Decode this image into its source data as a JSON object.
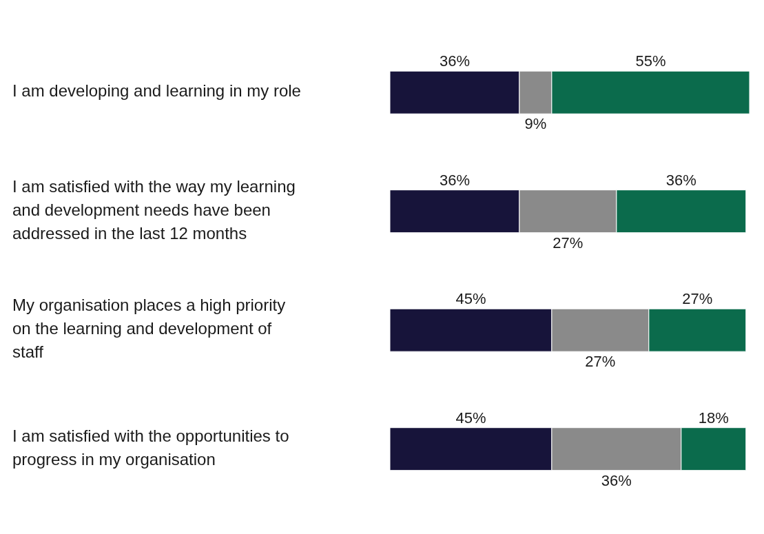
{
  "chart_data": {
    "type": "bar",
    "orientation": "horizontal",
    "stacked": true,
    "tick_labels": "y",
    "categories": [
      "I am developing and learning in my role",
      "I am satisfied with the way my learning and development needs have been addressed in the last 12 months",
      "My organisation places a high priority on the learning and development of staff",
      "I am satisfied with the opportunities to progress in my organisation"
    ],
    "series": [
      {
        "color": "#17143a",
        "values": [
          36,
          36,
          45,
          45
        ],
        "value_labels": [
          "36%",
          "36%",
          "45%",
          "45%"
        ]
      },
      {
        "color": "#8a8a8a",
        "values": [
          9,
          27,
          27,
          36
        ],
        "value_labels": [
          "9%",
          "27%",
          "27%",
          "36%"
        ]
      },
      {
        "color": "#0b6b4c",
        "values": [
          55,
          36,
          27,
          18
        ],
        "value_labels": [
          "55%",
          "36%",
          "27%",
          "18%"
        ]
      }
    ]
  }
}
